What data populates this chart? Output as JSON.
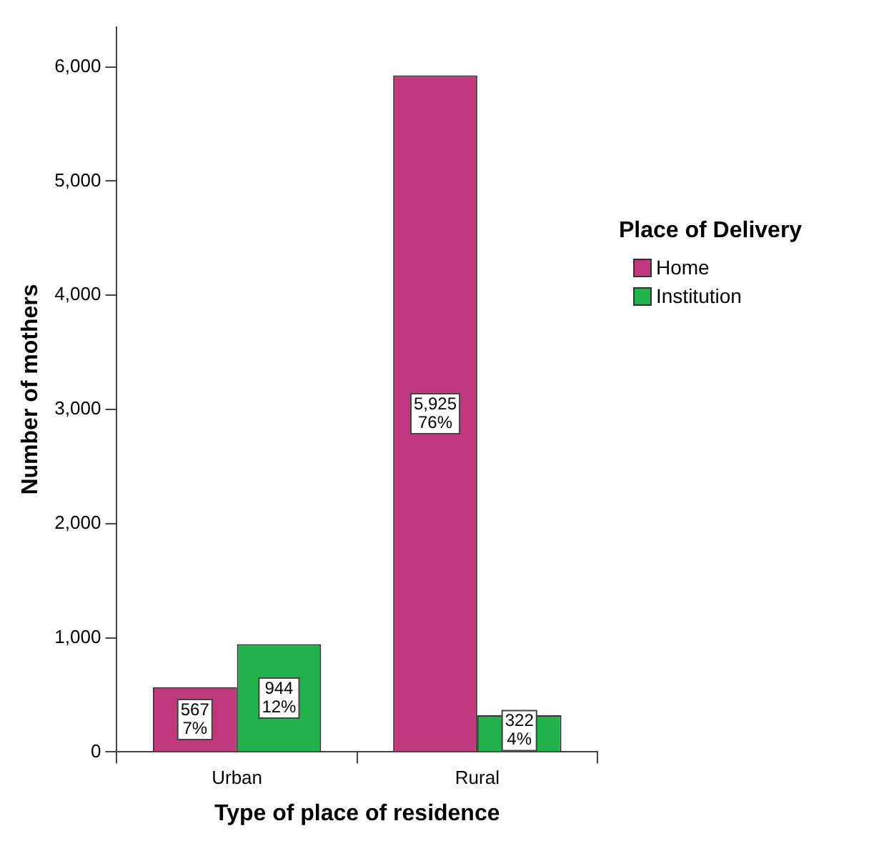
{
  "chart_data": {
    "type": "bar",
    "xlabel": "Type of place of residence",
    "ylabel": "Number of mothers",
    "legend_title": "Place of Delivery",
    "categories": [
      "Urban",
      "Rural"
    ],
    "series": [
      {
        "name": "Home",
        "color": "#c0397f",
        "values": [
          567,
          5925
        ],
        "value_labels": [
          "567\n7%",
          "5,925\n76%"
        ]
      },
      {
        "name": "Institution",
        "color": "#22b24c",
        "values": [
          944,
          322
        ],
        "value_labels": [
          "944\n12%",
          "322\n4%"
        ]
      }
    ],
    "ylim": [
      0,
      6350
    ],
    "yticks": [
      {
        "value": 0,
        "label": "0"
      },
      {
        "value": 1000,
        "label": "1,000"
      },
      {
        "value": 2000,
        "label": "2,000"
      },
      {
        "value": 3000,
        "label": "3,000"
      },
      {
        "value": 4000,
        "label": "4,000"
      },
      {
        "value": 5000,
        "label": "5,000"
      },
      {
        "value": 6000,
        "label": "6,000"
      }
    ],
    "grid": false,
    "legend": "right"
  }
}
